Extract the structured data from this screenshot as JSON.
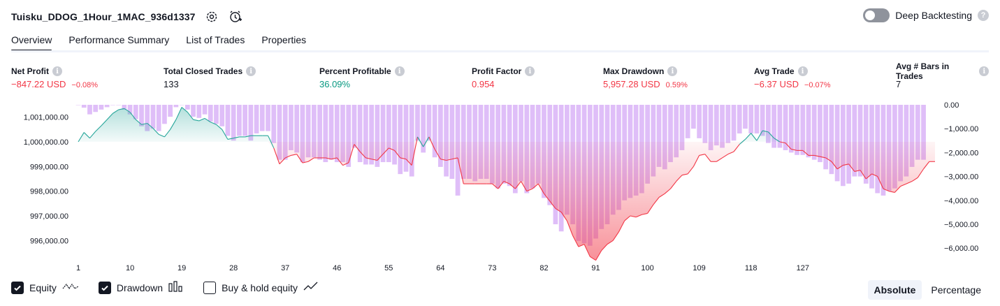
{
  "header": {
    "strategy_name": "Tuisku_DDOG_1Hour_1MAC_936d1337",
    "deep_backtesting_label": "Deep Backtesting"
  },
  "tabs": [
    {
      "label": "Overview",
      "active": true
    },
    {
      "label": "Performance Summary",
      "active": false
    },
    {
      "label": "List of Trades",
      "active": false
    },
    {
      "label": "Properties",
      "active": false
    }
  ],
  "metrics": {
    "net_profit": {
      "label": "Net Profit",
      "value": "−847.22 USD",
      "sub": "−0.08%"
    },
    "total_closed_trades": {
      "label": "Total Closed Trades",
      "value": "133"
    },
    "percent_profitable": {
      "label": "Percent Profitable",
      "value": "36.09%"
    },
    "profit_factor": {
      "label": "Profit Factor",
      "value": "0.954"
    },
    "max_drawdown": {
      "label": "Max Drawdown",
      "value": "5,957.28 USD",
      "sub": "0.59%"
    },
    "avg_trade": {
      "label": "Avg Trade",
      "value": "−6.37 USD",
      "sub": "−0.07%"
    },
    "avg_bars": {
      "label": "Avg # Bars in Trades",
      "value": "7"
    }
  },
  "colors": {
    "equity_up": "#26a69a",
    "equity_down": "#f23645",
    "drawdown_bar": "#d9b3f7",
    "positive_text": "#089981",
    "negative_text": "#f23645"
  },
  "chart_data": {
    "type": "line",
    "initial_capital": 1000000,
    "x_ticks": [
      "1",
      "10",
      "19",
      "28",
      "37",
      "46",
      "55",
      "64",
      "73",
      "82",
      "91",
      "100",
      "109",
      "118",
      "127"
    ],
    "y_left_ticks": [
      "1,001,000.00",
      "1,000,000.00",
      "999,000.00",
      "998,000.00",
      "997,000.00",
      "996,000.00"
    ],
    "y_left_range": [
      995500,
      1001500
    ],
    "y_right_ticks": [
      "0.00",
      "−1,000.00",
      "−2,000.00",
      "−3,000.00",
      "−4,000.00",
      "−5,000.00",
      "−6,000.00"
    ],
    "y_right_range": [
      -6200,
      0
    ],
    "series": [
      {
        "name": "Equity",
        "values": [
          1000000,
          1000380,
          1000150,
          1000420,
          1000650,
          1000900,
          1001150,
          1001300,
          1001350,
          1001200,
          1000900,
          1000700,
          1000750,
          1000550,
          1000300,
          1000200,
          1000500,
          1000900,
          1001400,
          1001200,
          1000900,
          1000850,
          1000950,
          1000800,
          1000700,
          1000500,
          1000100,
          1000150,
          1000200,
          1000200,
          1000250,
          1000250,
          1000250,
          1000250,
          999750,
          999100,
          999350,
          999450,
          999500,
          999150,
          999200,
          999350,
          999350,
          999350,
          999300,
          999350,
          999050,
          999150,
          999900,
          999600,
          999350,
          999300,
          999250,
          999500,
          999750,
          999650,
          999350,
          999300,
          999050,
          1000200,
          999800,
          1000200,
          999700,
          999300,
          999250,
          999300,
          999350,
          998300,
          998300,
          998300,
          998300,
          998300,
          998300,
          998100,
          998400,
          998300,
          998100,
          998400,
          998000,
          998100,
          998300,
          997900,
          997600,
          997300,
          997150,
          996800,
          996200,
          995750,
          995850,
          995350,
          995200,
          995600,
          995850,
          996000,
          996350,
          996800,
          997000,
          996950,
          997050,
          997100,
          997450,
          997750,
          997900,
          998100,
          998400,
          998650,
          998700,
          999000,
          999450,
          999500,
          999200,
          999200,
          999350,
          999500,
          999600,
          999900,
          1000100,
          1000350,
          1000050,
          1000450,
          1000400,
          1000150,
          1000000,
          999950,
          999700,
          999650,
          999650,
          999450,
          999450,
          999400,
          999350,
          999200,
          998900,
          999050,
          999100,
          998800,
          998850,
          998500,
          998700,
          998600,
          998100,
          998000,
          997950,
          998200,
          998300,
          998400,
          998550,
          998900,
          999200,
          999200
        ]
      },
      {
        "name": "Drawdown",
        "values": [
          0,
          -120,
          -400,
          -300,
          -200,
          -100,
          0,
          0,
          -200,
          -400,
          -600,
          -900,
          -1100,
          -1000,
          -1100,
          -800,
          -500,
          -100,
          0,
          -200,
          -500,
          -550,
          -400,
          -700,
          -800,
          -900,
          -1300,
          -1500,
          -1300,
          -1300,
          -1500,
          -1200,
          -1100,
          -1100,
          -1600,
          -2300,
          -2300,
          -1900,
          -2000,
          -2400,
          -2200,
          -2200,
          -2300,
          -2400,
          -2300,
          -2400,
          -2400,
          -2600,
          -1800,
          -2400,
          -2500,
          -2500,
          -2600,
          -2400,
          -2400,
          -2500,
          -2900,
          -2800,
          -3000,
          -1500,
          -2000,
          -1500,
          -2200,
          -2600,
          -3000,
          -3100,
          -3800,
          -3100,
          -3100,
          -3200,
          -3100,
          -3100,
          -3300,
          -3500,
          -3300,
          -3400,
          -3700,
          -3200,
          -3700,
          -3500,
          -3300,
          -3900,
          -4200,
          -5000,
          -5300,
          -4600,
          -5000,
          -5700,
          -5800,
          -5900,
          -5600,
          -5200,
          -5000,
          -4600,
          -4400,
          -4000,
          -3900,
          -3800,
          -3700,
          -3300,
          -3000,
          -2600,
          -2700,
          -2400,
          -2200,
          -1900,
          -1400,
          -1000,
          -1400,
          -1600,
          -1900,
          -1700,
          -1800,
          -1600,
          -1500,
          -1200,
          -1000,
          -1200,
          -1200,
          -1300,
          -1600,
          -1800,
          -1800,
          -1900,
          -2000,
          -2100,
          -2100,
          -2200,
          -2300,
          -2400,
          -2700,
          -2900,
          -3200,
          -3400,
          -3300,
          -3000,
          -3000,
          -3300,
          -3500,
          -3700,
          -3800,
          -3600,
          -3500,
          -3200,
          -3000,
          -2600,
          -2300,
          -2300
        ]
      }
    ]
  },
  "footer": {
    "equity_label": "Equity",
    "drawdown_label": "Drawdown",
    "buyhold_label": "Buy & hold equity",
    "absolute_label": "Absolute",
    "percentage_label": "Percentage"
  }
}
